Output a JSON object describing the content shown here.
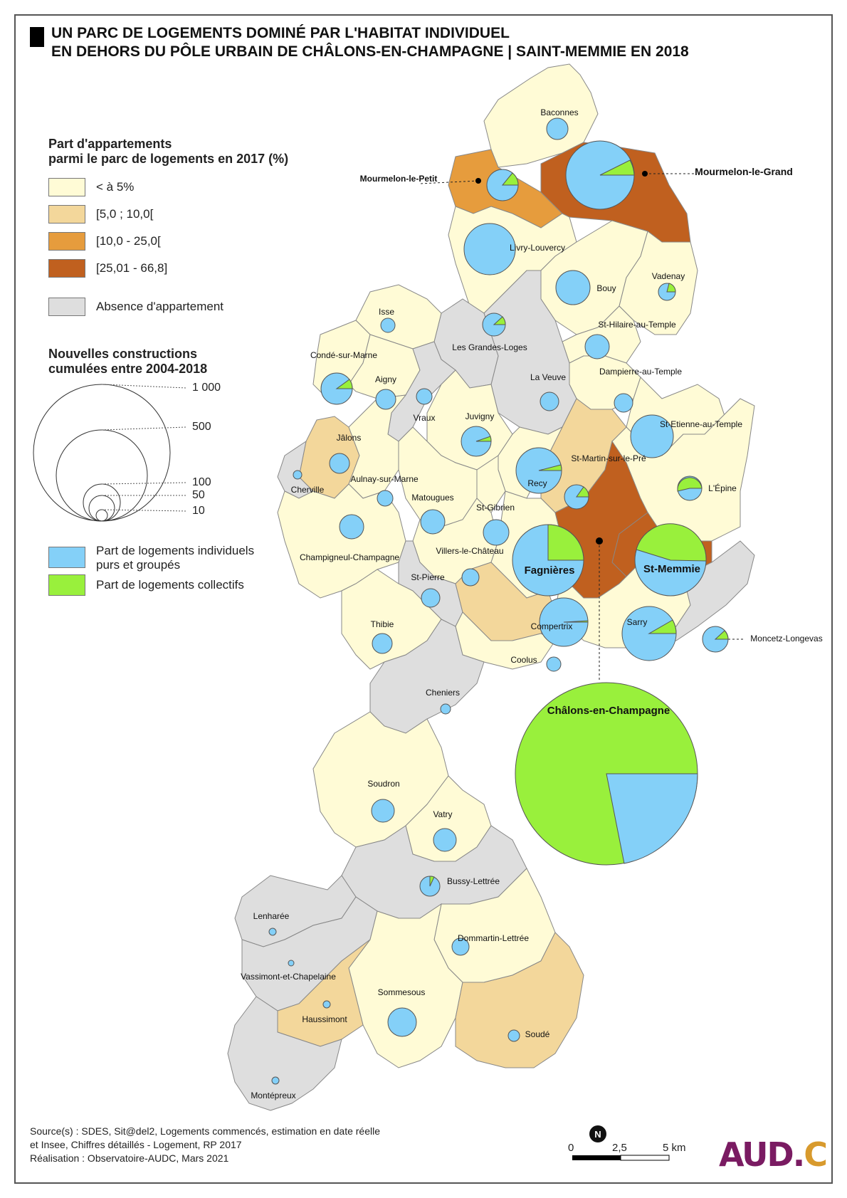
{
  "title": {
    "line1": "UN PARC DE LOGEMENTS DOMINÉ PAR L'HABITAT INDIVIDUEL",
    "line2": "EN DEHORS DU PÔLE URBAIN DE CHÂLONS-EN-CHAMPAGNE | SAINT-MEMMIE EN 2018"
  },
  "legend": {
    "share": {
      "title1": "Part d'appartements",
      "title2": "parmi le parc de logements en 2017 (%)",
      "classes": [
        {
          "label": "< à 5%",
          "color": "#fffbd6"
        },
        {
          "label": "[5,0 ; 10,0[",
          "color": "#f3d79b"
        },
        {
          "label": "[10,0 - 25,0[",
          "color": "#e69c3d"
        },
        {
          "label": "[25,01 - 66,8]",
          "color": "#c0601f"
        },
        {
          "label": "Absence d'appartement",
          "color": "#dedede"
        }
      ]
    },
    "size": {
      "title1": "Nouvelles constructions",
      "title2": "cumulées entre 2004-2018",
      "steps": [
        "1 000",
        "500",
        "100",
        "50",
        "10"
      ]
    },
    "pie": {
      "individual": {
        "label1": "Part de logements individuels",
        "label2": "purs et groupés",
        "color": "#84d0f8"
      },
      "collective": {
        "label": "Part de logements collectifs",
        "color": "#99f03c"
      }
    }
  },
  "communes": [
    {
      "name": "Baconnes"
    },
    {
      "name": "Mourmelon-le-Petit"
    },
    {
      "name": "Mourmelon-le-Grand"
    },
    {
      "name": "Livry-Louvercy"
    },
    {
      "name": "Vadenay"
    },
    {
      "name": "Bouy"
    },
    {
      "name": "Isse"
    },
    {
      "name": "Les Grandes-Loges"
    },
    {
      "name": "St-Hilaire-au-Temple"
    },
    {
      "name": "Condé-sur-Marne"
    },
    {
      "name": "Aigny"
    },
    {
      "name": "La Veuve"
    },
    {
      "name": "Dampierre-au-Temple"
    },
    {
      "name": "Vraux"
    },
    {
      "name": "Juvigny"
    },
    {
      "name": "St-Etienne-au-Temple"
    },
    {
      "name": "Jâlons"
    },
    {
      "name": "Cherville"
    },
    {
      "name": "Aulnay-sur-Marne"
    },
    {
      "name": "Recy"
    },
    {
      "name": "St-Martin-sur-le-Pré"
    },
    {
      "name": "L'Épine"
    },
    {
      "name": "Matougues"
    },
    {
      "name": "St-Gibrien"
    },
    {
      "name": "Champigneul-Champagne"
    },
    {
      "name": "Villers-le-Château"
    },
    {
      "name": "Fagnières"
    },
    {
      "name": "St-Memmie"
    },
    {
      "name": "St-Pierre"
    },
    {
      "name": "Compertrix"
    },
    {
      "name": "Sarry"
    },
    {
      "name": "Moncetz-Longevas"
    },
    {
      "name": "Thibie"
    },
    {
      "name": "Coolus"
    },
    {
      "name": "Cheniers"
    },
    {
      "name": "Châlons-en-Champagne"
    },
    {
      "name": "Soudron"
    },
    {
      "name": "Vatry"
    },
    {
      "name": "Bussy-Lettrée"
    },
    {
      "name": "Lenharée"
    },
    {
      "name": "Dommartin-Lettrée"
    },
    {
      "name": "Vassimont-et-Chapelaine"
    },
    {
      "name": "Sommesous"
    },
    {
      "name": "Haussimont"
    },
    {
      "name": "Soudé"
    },
    {
      "name": "Montépreux"
    }
  ],
  "source": {
    "line1": "Source(s) : SDES, Sit@del2, Logements commencés, estimation en date réelle",
    "line2": "et Insee, Chiffres détaillés - Logement, RP 2017",
    "line3": "Réalisation : Observatoire-AUDC, Mars 2021"
  },
  "scale": {
    "zero": "0",
    "mid": "2,5",
    "end": "5 km"
  },
  "north": "N",
  "logo": {
    "main": "AUD.",
    "accent": "C"
  }
}
